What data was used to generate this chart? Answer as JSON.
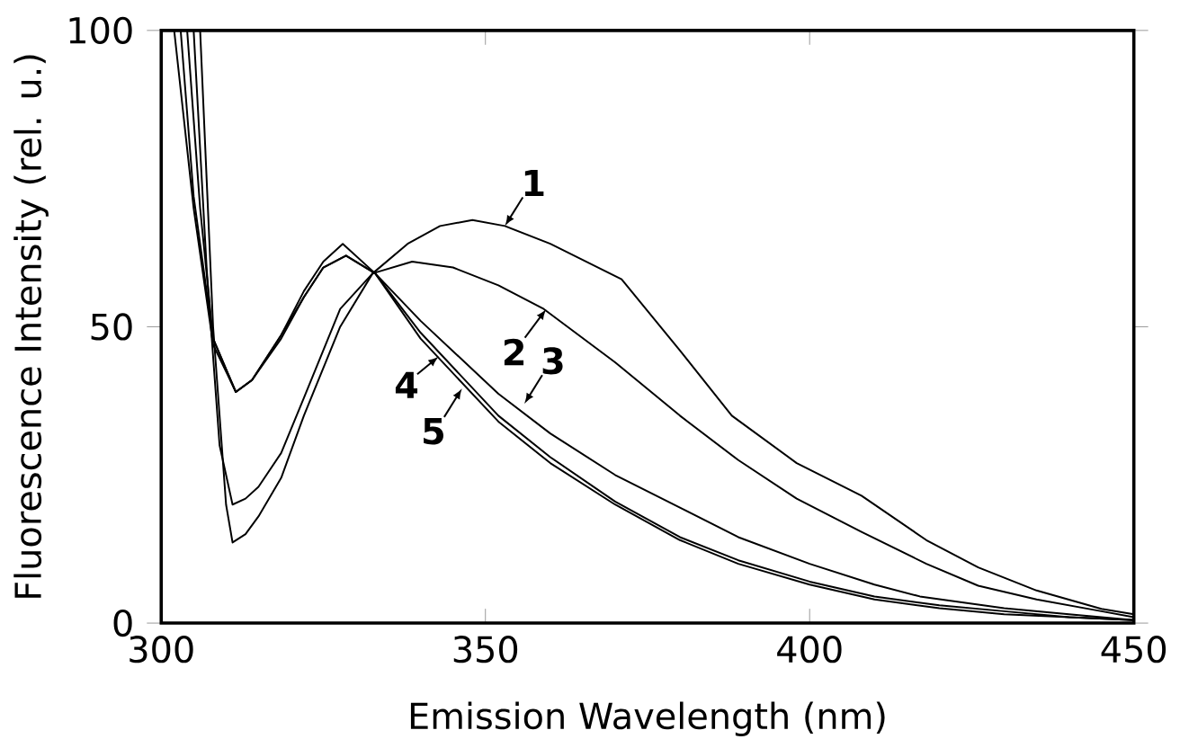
{
  "chart_data": {
    "type": "line",
    "xlabel": "Emission Wavelength (nm)",
    "ylabel": "Fluorescence Intensity (rel. u.)",
    "xlim": [
      300,
      450
    ],
    "ylim": [
      0,
      100
    ],
    "xticks": [
      300,
      350,
      400,
      450
    ],
    "yticks": [
      0,
      50,
      100
    ],
    "grid": false,
    "series": [
      {
        "color": "#000000",
        "x": [
          306,
          308,
          310,
          311,
          313,
          315,
          318.5,
          322,
          327.6,
          332.6,
          338,
          343,
          348,
          353,
          360,
          371,
          380,
          388,
          398,
          408,
          418,
          426,
          435,
          445,
          450
        ],
        "values": [
          100,
          50,
          20,
          13.6,
          15,
          18,
          24.5,
          35,
          50,
          59,
          64,
          67,
          68,
          67,
          64,
          58,
          46,
          35,
          27,
          21.5,
          14,
          9.4,
          5.5,
          2.4,
          1.5
        ]
      },
      {
        "color": "#000000",
        "x": [
          305,
          307,
          309,
          311,
          313,
          315,
          318.5,
          322,
          327.6,
          332.6,
          338.7,
          345,
          352,
          359,
          370,
          380,
          389,
          398,
          408,
          418,
          426,
          435,
          445,
          450
        ],
        "values": [
          100,
          60,
          30,
          20,
          21,
          23,
          28.7,
          38,
          53,
          59,
          61,
          60,
          57,
          53,
          44,
          35,
          27.5,
          21,
          15.4,
          10,
          6.3,
          4,
          2,
          1
        ]
      },
      {
        "color": "#000000",
        "x": [
          304,
          306,
          308,
          311.5,
          314,
          318.5,
          322,
          325,
          328.5,
          333,
          340,
          352,
          360,
          370,
          380,
          389,
          400,
          410,
          417,
          430,
          440,
          450
        ],
        "values": [
          100,
          70,
          48,
          39,
          41,
          48.6,
          55,
          60,
          62,
          59,
          51,
          38.7,
          32,
          25,
          19.5,
          14.5,
          10,
          6.5,
          4.5,
          2.5,
          1.5,
          0.5
        ]
      },
      {
        "color": "#000000",
        "x": [
          303,
          305,
          308,
          311.5,
          314,
          318.5,
          322,
          325,
          328,
          333,
          340,
          352,
          360,
          370,
          380,
          389,
          400,
          410,
          420,
          430,
          440,
          450
        ],
        "values": [
          100,
          72,
          48,
          39,
          41,
          48.6,
          56,
          61,
          64,
          59,
          49,
          35,
          28,
          20.5,
          14.5,
          10.6,
          7,
          4.5,
          3,
          2,
          1,
          0.5
        ]
      },
      {
        "color": "#000000",
        "x": [
          302,
          305,
          308,
          311.5,
          314,
          318.5,
          322,
          325,
          328.5,
          333,
          340,
          352,
          360,
          370,
          380,
          389,
          400,
          410,
          420,
          430,
          440,
          450
        ],
        "values": [
          100,
          70,
          47,
          39,
          41,
          48,
          55,
          60,
          62,
          59,
          48,
          34,
          27,
          20,
          14,
          10,
          6.5,
          4,
          2.5,
          1.5,
          1,
          0.5
        ]
      }
    ],
    "annotations": [
      {
        "text": "1",
        "x": 353,
        "y": 67
      },
      {
        "text": "2",
        "x": 359.4,
        "y": 53
      },
      {
        "text": "3",
        "x": 356,
        "y": 37
      },
      {
        "text": "4",
        "x": 342.8,
        "y": 45
      },
      {
        "text": "5",
        "x": 346.4,
        "y": 39.6
      }
    ]
  }
}
